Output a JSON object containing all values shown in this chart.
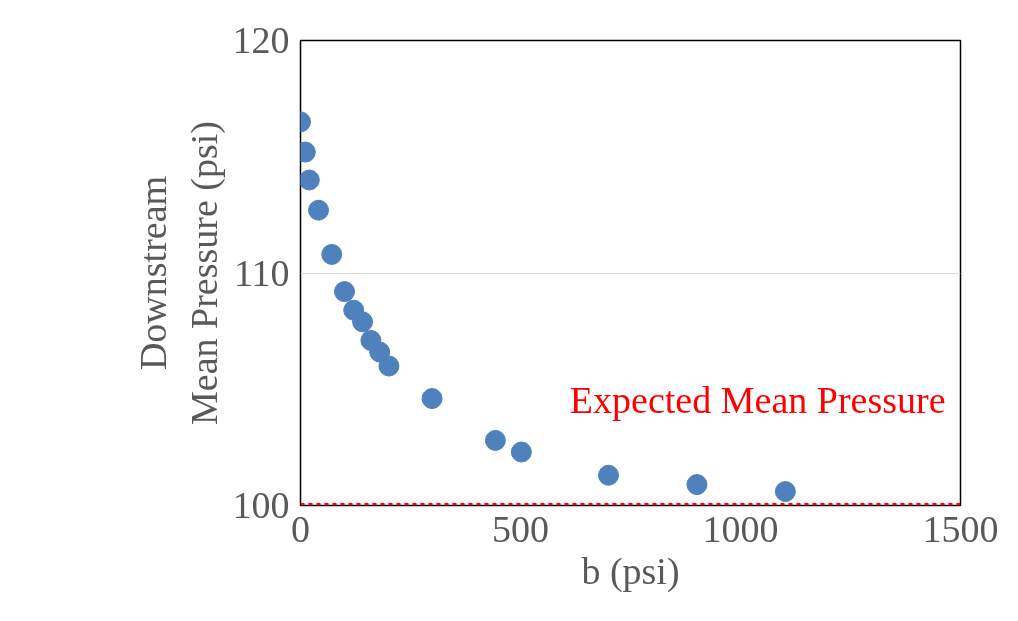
{
  "chart_data": {
    "type": "scatter",
    "xlabel": "b (psi)",
    "ylabel": "Downstream\nMean Pressure (psi)",
    "x": [
      0,
      11,
      20,
      41,
      71,
      100,
      121,
      141,
      160,
      180,
      201,
      299,
      443,
      502,
      700,
      901,
      1102
    ],
    "series": [
      {
        "color": "#4f81bd",
        "values": [
          116.5,
          115.2,
          114.0,
          112.7,
          110.8,
          109.2,
          108.4,
          107.9,
          107.1,
          106.6,
          106.0,
          104.6,
          102.8,
          102.3,
          101.3,
          100.9,
          100.6
        ]
      }
    ],
    "xlim": [
      0,
      1500
    ],
    "xticks": [
      0,
      500,
      1000,
      1500
    ],
    "ylim": [
      100,
      120
    ],
    "yticks": [
      100,
      110,
      120
    ],
    "grid": "y",
    "marker": "circle",
    "ref_lines": [
      {
        "axis": "y",
        "value": 100,
        "label": "Expected Mean Pressure",
        "color": "#ff0000",
        "line_style": "dotted"
      }
    ]
  }
}
